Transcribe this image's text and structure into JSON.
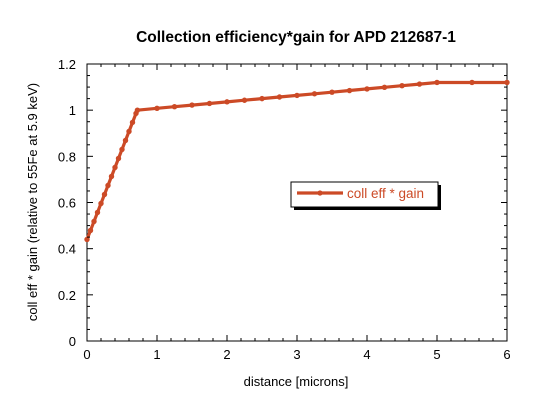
{
  "chart_data": {
    "type": "line",
    "title": "Collection efficiency*gain for APD 212687-1",
    "xlabel": "distance [microns]",
    "ylabel": "coll eff * gain (relative to 55Fe at 5.9 keV)",
    "xlim": [
      0,
      6
    ],
    "ylim": [
      0,
      1.2
    ],
    "xticks": [
      0,
      1,
      2,
      3,
      4,
      5,
      6
    ],
    "yticks": [
      0,
      0.2,
      0.4,
      0.6,
      0.8,
      1,
      1.2
    ],
    "xtick_labels": [
      "0",
      "1",
      "2",
      "3",
      "4",
      "5",
      "6"
    ],
    "ytick_labels": [
      "0",
      "0.2",
      "0.4",
      "0.6",
      "0.8",
      "1",
      "1.2"
    ],
    "grid": false,
    "legend_position": "center-right",
    "series": [
      {
        "name": "coll eff * gain",
        "color": "#cc4a26",
        "marker": "circle",
        "x": [
          0,
          0.05,
          0.1,
          0.15,
          0.2,
          0.25,
          0.3,
          0.35,
          0.4,
          0.45,
          0.5,
          0.55,
          0.6,
          0.65,
          0.7,
          0.72,
          1.0,
          1.25,
          1.5,
          1.75,
          2.0,
          2.25,
          2.5,
          2.75,
          3.0,
          3.25,
          3.5,
          3.75,
          4.0,
          4.25,
          4.5,
          4.75,
          5.0,
          5.5,
          6.0
        ],
        "y": [
          0.44,
          0.479,
          0.518,
          0.557,
          0.596,
          0.635,
          0.674,
          0.713,
          0.752,
          0.791,
          0.83,
          0.869,
          0.908,
          0.947,
          0.986,
          1.0,
          1.008,
          1.015,
          1.022,
          1.029,
          1.036,
          1.043,
          1.05,
          1.057,
          1.064,
          1.071,
          1.078,
          1.085,
          1.092,
          1.099,
          1.106,
          1.113,
          1.12,
          1.12,
          1.12
        ]
      }
    ]
  }
}
